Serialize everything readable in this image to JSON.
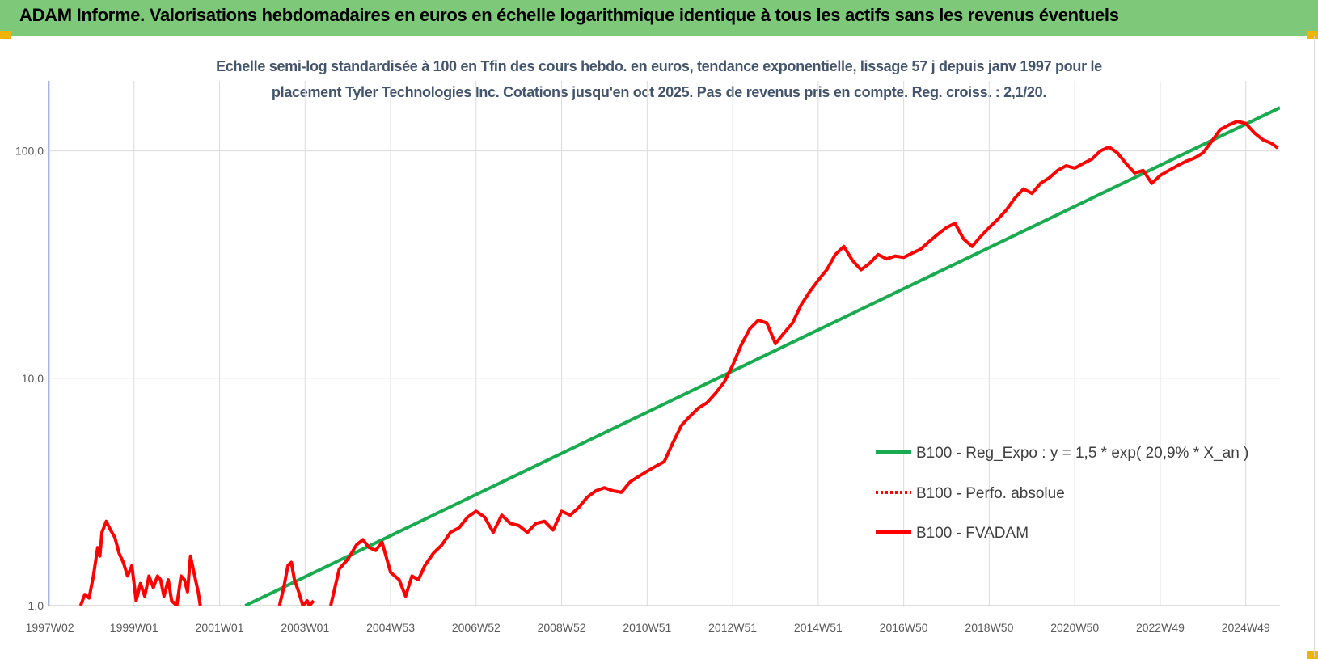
{
  "header": {
    "title": "ADAM Informe. Valorisations hebdomadaires en euros en échelle logarithmique identique à tous les actifs sans les revenus éventuels"
  },
  "colors": {
    "header_bg": "#7ec87a",
    "corner_accent": "#f0b400",
    "trend_line": "#1aaa50",
    "price_line": "#ff0000",
    "subtitle_text": "#44546a"
  },
  "chart_data": {
    "type": "line",
    "title_line1": "Echelle semi-log standardisée à 100 en Tfin des cours hebdo. en euros, tendance exponentielle, lissage 57 j depuis janv 1997 pour le",
    "title_line2": "placement Tyler Technologies Inc. Cotations jusqu'en oct 2025. Pas de revenus pris en compte. Reg. croiss. : 2,1/20.",
    "y_scale": "log",
    "ylim": [
      1,
      180
    ],
    "xlim": [
      1997.0,
      2025.8
    ],
    "y_ticks": [
      {
        "value": 1,
        "label": "1,0"
      },
      {
        "value": 10,
        "label": "10,0"
      },
      {
        "value": 100,
        "label": "100,0"
      }
    ],
    "x_ticks": [
      {
        "value": 1997.03,
        "label": "1997W02"
      },
      {
        "value": 1999.0,
        "label": "1999W01"
      },
      {
        "value": 2001.0,
        "label": "2001W01"
      },
      {
        "value": 2003.0,
        "label": "2003W01"
      },
      {
        "value": 2005.0,
        "label": "2004W53"
      },
      {
        "value": 2007.0,
        "label": "2006W52"
      },
      {
        "value": 2009.0,
        "label": "2008W52"
      },
      {
        "value": 2011.0,
        "label": "2010W51"
      },
      {
        "value": 2013.0,
        "label": "2012W51"
      },
      {
        "value": 2015.0,
        "label": "2014W51"
      },
      {
        "value": 2017.0,
        "label": "2016W50"
      },
      {
        "value": 2019.0,
        "label": "2018W50"
      },
      {
        "value": 2021.0,
        "label": "2020W50"
      },
      {
        "value": 2023.0,
        "label": "2022W49"
      },
      {
        "value": 2025.0,
        "label": "2024W49"
      }
    ],
    "grid": "vertical and horizontal",
    "legend_position": "right, lower-middle",
    "series": [
      {
        "name": "B100 - Reg_Expo : y = 1,5 * exp( 20,9% *  X_an )",
        "style": "solid",
        "color": "#1aaa50",
        "x": [
          2001.6,
          2025.8
        ],
        "y": [
          1.0,
          155
        ]
      },
      {
        "name": "B100 - Perfo. absolue",
        "style": "dotted",
        "color": "#ff0000",
        "x": [],
        "y": []
      },
      {
        "name": "B100 - FVADAM",
        "style": "solid",
        "color": "#ff0000",
        "segments": [
          {
            "x": [
              1997.75,
              1997.85,
              1997.95,
              1998.05,
              1998.15,
              1998.2,
              1998.25,
              1998.35,
              1998.45,
              1998.55,
              1998.65,
              1998.75,
              1998.85,
              1998.95,
              1999.05,
              1999.15,
              1999.25,
              1999.35,
              1999.45,
              1999.55,
              1999.62,
              1999.7,
              1999.8,
              1999.88,
              2000.0,
              2000.1,
              2000.18,
              2000.25,
              2000.32,
              2000.4,
              2000.5,
              2000.55
            ],
            "y": [
              1.0,
              1.12,
              1.08,
              1.35,
              1.8,
              1.65,
              2.1,
              2.35,
              2.15,
              2.0,
              1.7,
              1.55,
              1.35,
              1.5,
              1.05,
              1.25,
              1.1,
              1.35,
              1.2,
              1.35,
              1.3,
              1.1,
              1.3,
              1.05,
              1.0,
              1.35,
              1.3,
              1.15,
              1.65,
              1.4,
              1.15,
              1.0
            ]
          },
          {
            "x": [
              2002.4,
              2002.5,
              2002.6,
              2002.68,
              2002.75,
              2002.85,
              2002.95,
              2003.05,
              2003.1,
              2003.2
            ],
            "y": [
              1.0,
              1.2,
              1.5,
              1.55,
              1.3,
              1.15,
              1.0,
              1.05,
              1.0,
              1.05
            ]
          },
          {
            "x": [
              2003.6,
              2003.8,
              2004.0,
              2004.2,
              2004.35,
              2004.5,
              2004.65,
              2004.8,
              2005.0,
              2005.2,
              2005.35,
              2005.5,
              2005.65,
              2005.8,
              2006.0,
              2006.2,
              2006.4,
              2006.6,
              2006.8,
              2007.0,
              2007.2,
              2007.4,
              2007.6,
              2007.8,
              2008.0,
              2008.2,
              2008.4,
              2008.6,
              2008.8,
              2009.0,
              2009.2,
              2009.4,
              2009.6,
              2009.8,
              2010.0,
              2010.2,
              2010.4,
              2010.6,
              2010.8,
              2011.0,
              2011.2,
              2011.4,
              2011.6,
              2011.8,
              2012.0,
              2012.2,
              2012.4,
              2012.6,
              2012.8,
              2013.0,
              2013.2,
              2013.4,
              2013.6,
              2013.8,
              2014.0,
              2014.2,
              2014.4,
              2014.6,
              2014.8,
              2015.0,
              2015.2,
              2015.4,
              2015.6,
              2015.8,
              2016.0,
              2016.2,
              2016.4,
              2016.6,
              2016.8,
              2017.0,
              2017.2,
              2017.4,
              2017.6,
              2017.8,
              2018.0,
              2018.2,
              2018.4,
              2018.6,
              2018.8,
              2019.0,
              2019.2,
              2019.4,
              2019.6,
              2019.8,
              2020.0,
              2020.2,
              2020.4,
              2020.6,
              2020.8,
              2021.0,
              2021.2,
              2021.4,
              2021.6,
              2021.8,
              2022.0,
              2022.2,
              2022.4,
              2022.6,
              2022.8,
              2023.0,
              2023.2,
              2023.4,
              2023.6,
              2023.8,
              2024.0,
              2024.2,
              2024.4,
              2024.6,
              2024.8,
              2025.0,
              2025.2,
              2025.4,
              2025.6,
              2025.75
            ],
            "y": [
              1.0,
              1.45,
              1.6,
              1.85,
              1.95,
              1.8,
              1.75,
              1.9,
              1.4,
              1.3,
              1.1,
              1.35,
              1.3,
              1.5,
              1.7,
              1.85,
              2.1,
              2.2,
              2.45,
              2.6,
              2.45,
              2.1,
              2.5,
              2.3,
              2.25,
              2.1,
              2.3,
              2.35,
              2.15,
              2.6,
              2.5,
              2.7,
              3.0,
              3.2,
              3.3,
              3.2,
              3.15,
              3.5,
              3.7,
              3.9,
              4.1,
              4.3,
              5.2,
              6.2,
              6.8,
              7.4,
              7.8,
              8.6,
              9.6,
              11.4,
              14.0,
              16.5,
              18.0,
              17.5,
              14.2,
              15.8,
              17.5,
              21.0,
              24.0,
              27.0,
              30.0,
              35.0,
              38.0,
              33.0,
              30.0,
              32.0,
              35.0,
              33.5,
              34.5,
              34.0,
              35.5,
              37.0,
              40.0,
              43.0,
              46.0,
              48.0,
              41.0,
              38.0,
              42.0,
              46.0,
              50.0,
              55.0,
              62.0,
              68.0,
              65.0,
              72.0,
              76.0,
              82.0,
              86.0,
              84.0,
              88.0,
              92.0,
              100.0,
              104.0,
              98.0,
              88.0,
              80.0,
              82.0,
              72.0,
              78.0,
              82.0,
              86.0,
              90.0,
              93.0,
              98.0,
              110.0,
              124.0,
              130.0,
              135.0,
              132.0,
              120.0,
              112.0,
              108.0,
              103.0
            ]
          }
        ]
      }
    ]
  }
}
